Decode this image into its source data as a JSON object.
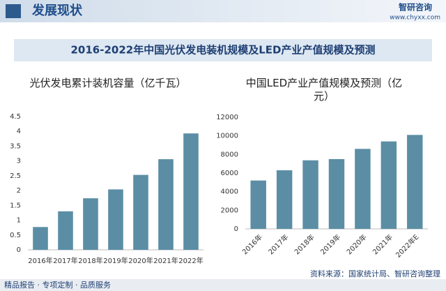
{
  "header": {
    "title": "发展现状",
    "brand": "智研咨询",
    "url": "www.chyxx.com"
  },
  "banner": "2016-2022年中国光伏发电装机规模及LED产业产值规模及预测",
  "chart_data": [
    {
      "type": "bar",
      "title": "光伏发电累计装机容量（亿千瓦）",
      "categories": [
        "2016年",
        "2017年",
        "2018年",
        "2019年",
        "2020年",
        "2021年",
        "2022年"
      ],
      "values": [
        0.77,
        1.3,
        1.74,
        2.04,
        2.53,
        3.06,
        3.93
      ],
      "color": "#5b8ea5",
      "ylim": [
        0,
        4.5
      ],
      "yticks": [
        0,
        0.5,
        1,
        1.5,
        2,
        2.5,
        3,
        3.5,
        4,
        4.5
      ],
      "grid": false
    },
    {
      "type": "bar",
      "title": "中国LED产业产值规模及预测（亿元）",
      "categories": [
        "2016年",
        "2017年",
        "2018年",
        "2019年",
        "2020年",
        "2021年",
        "2022年E"
      ],
      "values": [
        5200,
        6300,
        7370,
        7500,
        8600,
        9400,
        10100
      ],
      "color": "#5b8ea5",
      "ylim": [
        0,
        12000
      ],
      "yticks": [
        0,
        2000,
        4000,
        6000,
        8000,
        10000,
        12000
      ],
      "grid": false,
      "x_label_rotation": -45
    }
  ],
  "footer": {
    "slogan": "精品报告 · 专项定制 · 品质服务",
    "source": "资料来源：国家统计局、智研咨询整理"
  }
}
